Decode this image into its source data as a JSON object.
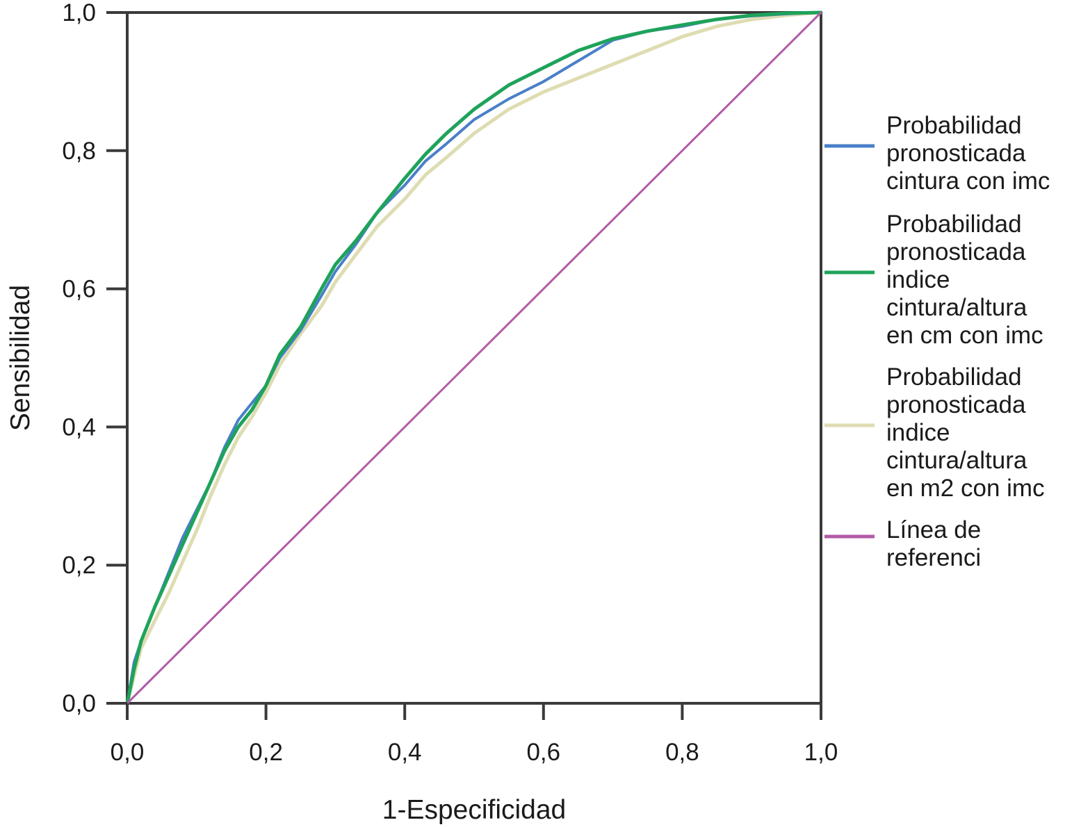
{
  "chart_data": {
    "type": "line",
    "title": "",
    "xlabel": "1-Especificidad",
    "ylabel": "Sensibilidad",
    "xlim": [
      0,
      1
    ],
    "ylim": [
      0,
      1
    ],
    "xticks": [
      "0,0",
      "0,2",
      "0,4",
      "0,6",
      "0,8",
      "1,0"
    ],
    "yticks": [
      "0,0",
      "0,2",
      "0,4",
      "0,6",
      "0,8",
      "1,0"
    ],
    "grid": false,
    "legend_position": "right",
    "series": [
      {
        "name_lines": [
          "Probabilidad",
          "pronosticada",
          "cintura con imc"
        ],
        "color": "#4a7fc8",
        "points": [
          [
            0,
            0
          ],
          [
            0.01,
            0.06
          ],
          [
            0.02,
            0.09
          ],
          [
            0.04,
            0.14
          ],
          [
            0.06,
            0.19
          ],
          [
            0.08,
            0.24
          ],
          [
            0.1,
            0.28
          ],
          [
            0.12,
            0.32
          ],
          [
            0.14,
            0.37
          ],
          [
            0.16,
            0.41
          ],
          [
            0.18,
            0.435
          ],
          [
            0.2,
            0.46
          ],
          [
            0.22,
            0.5
          ],
          [
            0.25,
            0.54
          ],
          [
            0.28,
            0.59
          ],
          [
            0.3,
            0.625
          ],
          [
            0.33,
            0.665
          ],
          [
            0.36,
            0.71
          ],
          [
            0.4,
            0.75
          ],
          [
            0.43,
            0.785
          ],
          [
            0.46,
            0.81
          ],
          [
            0.5,
            0.845
          ],
          [
            0.55,
            0.875
          ],
          [
            0.6,
            0.9
          ],
          [
            0.65,
            0.93
          ],
          [
            0.7,
            0.96
          ],
          [
            0.75,
            0.973
          ],
          [
            0.8,
            0.98
          ],
          [
            0.85,
            0.99
          ],
          [
            0.9,
            0.995
          ],
          [
            0.95,
            0.998
          ],
          [
            1,
            1
          ]
        ]
      },
      {
        "name_lines": [
          "Probabilidad",
          "pronosticada",
          "indice",
          "cintura/altura",
          "en cm con imc"
        ],
        "color": "#1ea35a",
        "points": [
          [
            0,
            0
          ],
          [
            0.01,
            0.05
          ],
          [
            0.02,
            0.09
          ],
          [
            0.04,
            0.14
          ],
          [
            0.06,
            0.185
          ],
          [
            0.08,
            0.23
          ],
          [
            0.1,
            0.275
          ],
          [
            0.12,
            0.32
          ],
          [
            0.14,
            0.365
          ],
          [
            0.16,
            0.4
          ],
          [
            0.18,
            0.425
          ],
          [
            0.2,
            0.46
          ],
          [
            0.22,
            0.505
          ],
          [
            0.25,
            0.545
          ],
          [
            0.28,
            0.6
          ],
          [
            0.3,
            0.635
          ],
          [
            0.33,
            0.67
          ],
          [
            0.36,
            0.71
          ],
          [
            0.4,
            0.76
          ],
          [
            0.43,
            0.795
          ],
          [
            0.46,
            0.825
          ],
          [
            0.5,
            0.86
          ],
          [
            0.55,
            0.895
          ],
          [
            0.6,
            0.92
          ],
          [
            0.65,
            0.945
          ],
          [
            0.7,
            0.962
          ],
          [
            0.75,
            0.973
          ],
          [
            0.8,
            0.982
          ],
          [
            0.85,
            0.99
          ],
          [
            0.9,
            0.996
          ],
          [
            0.95,
            0.999
          ],
          [
            1,
            1
          ]
        ]
      },
      {
        "name_lines": [
          "Probabilidad",
          "pronosticada",
          "indice",
          "cintura/altura",
          "en m2 con imc"
        ],
        "color": "#dedcb2",
        "points": [
          [
            0,
            0
          ],
          [
            0.01,
            0.04
          ],
          [
            0.02,
            0.08
          ],
          [
            0.04,
            0.12
          ],
          [
            0.06,
            0.16
          ],
          [
            0.08,
            0.205
          ],
          [
            0.1,
            0.25
          ],
          [
            0.12,
            0.3
          ],
          [
            0.14,
            0.345
          ],
          [
            0.16,
            0.385
          ],
          [
            0.18,
            0.415
          ],
          [
            0.2,
            0.45
          ],
          [
            0.22,
            0.49
          ],
          [
            0.25,
            0.535
          ],
          [
            0.28,
            0.575
          ],
          [
            0.3,
            0.61
          ],
          [
            0.33,
            0.65
          ],
          [
            0.36,
            0.69
          ],
          [
            0.4,
            0.73
          ],
          [
            0.43,
            0.765
          ],
          [
            0.46,
            0.79
          ],
          [
            0.5,
            0.825
          ],
          [
            0.55,
            0.86
          ],
          [
            0.6,
            0.885
          ],
          [
            0.65,
            0.905
          ],
          [
            0.7,
            0.925
          ],
          [
            0.75,
            0.945
          ],
          [
            0.8,
            0.965
          ],
          [
            0.85,
            0.98
          ],
          [
            0.9,
            0.99
          ],
          [
            0.95,
            0.996
          ],
          [
            1,
            1
          ]
        ]
      },
      {
        "name_lines": [
          "Línea de",
          "referenci"
        ],
        "color": "#b25ba8",
        "points": [
          [
            0,
            0
          ],
          [
            1,
            1
          ]
        ]
      }
    ]
  }
}
